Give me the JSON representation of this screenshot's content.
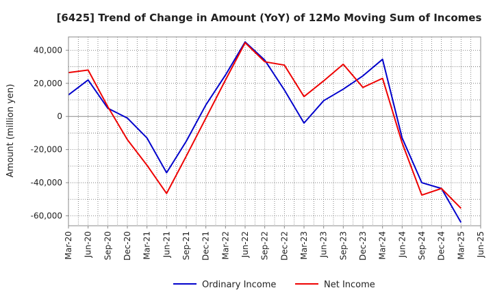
{
  "chart_data": {
    "type": "line",
    "title": "[6425]  Trend of Change in Amount (YoY) of 12Mo Moving Sum of Incomes",
    "xlabel": "",
    "ylabel": "Amount (million yen)",
    "x": [
      "Mar-20",
      "Jun-20",
      "Sep-20",
      "Dec-20",
      "Mar-21",
      "Jun-21",
      "Sep-21",
      "Dec-21",
      "Mar-22",
      "Jun-22",
      "Sep-22",
      "Dec-22",
      "Mar-23",
      "Jun-23",
      "Sep-23",
      "Dec-23",
      "Mar-24",
      "Jun-24",
      "Sep-24",
      "Dec-24",
      "Mar-25",
      "Jun-25"
    ],
    "ylim": [
      -66000,
      48000
    ],
    "yticks": [
      -60000,
      -40000,
      -20000,
      0,
      20000,
      40000
    ],
    "ytick_labels": [
      "-60,000",
      "-40,000",
      "-20,000",
      "0",
      "20,000",
      "40,000"
    ],
    "grid": true,
    "legend_position": "bottom-center",
    "series": [
      {
        "name": "Ordinary Income",
        "color": "#0000cc",
        "values": [
          13000,
          22000,
          5000,
          -1000,
          -13000,
          -34000,
          -15000,
          7000,
          25000,
          45000,
          34000,
          16000,
          -4000,
          9500,
          16500,
          24500,
          34500,
          -13000,
          -40000,
          -43500,
          -64000,
          null
        ]
      },
      {
        "name": "Net Income",
        "color": "#ee0000",
        "values": [
          26500,
          28000,
          6000,
          -14000,
          -29500,
          -46500,
          -24000,
          -1000,
          22000,
          44500,
          33000,
          31000,
          12000,
          21500,
          31500,
          17500,
          23000,
          -16000,
          -47500,
          -43500,
          -55500,
          null
        ]
      }
    ]
  }
}
